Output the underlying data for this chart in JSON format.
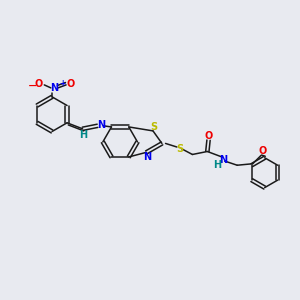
{
  "bg_color": "#e8eaf0",
  "bond_color": "#1a1a1a",
  "colors": {
    "N": "#0000ee",
    "O": "#ee0000",
    "S": "#bbbb00",
    "H": "#008888",
    "C": "#1a1a1a"
  },
  "lw": 1.1,
  "fs": 7.0
}
